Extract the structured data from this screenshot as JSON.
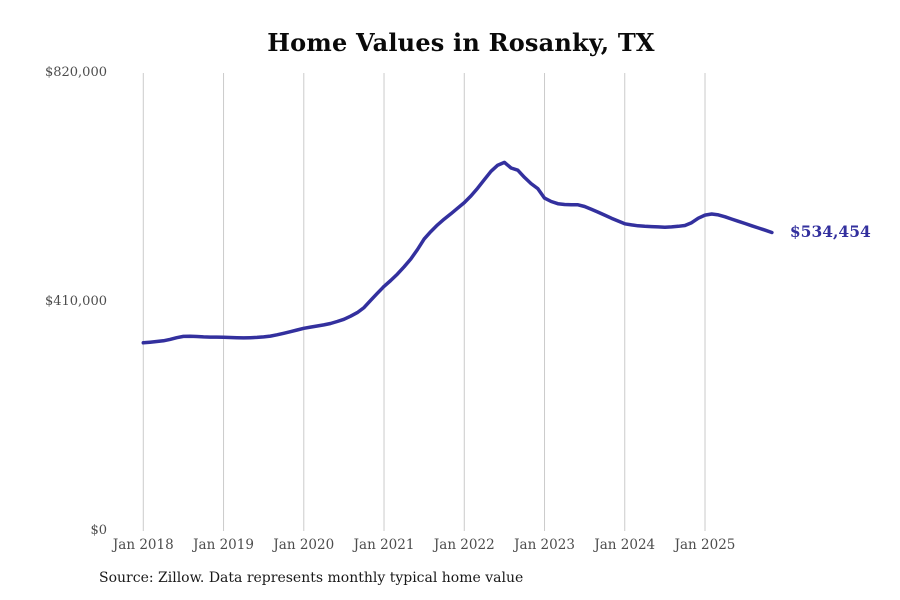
{
  "page": {
    "title": "Home Values in Rosanky, TX",
    "source_note": "Source: Zillow. Data represents monthly typical home value"
  },
  "chart_data": {
    "type": "line",
    "title": "Home Values in Rosanky, TX",
    "series_name": "Monthly typical home value",
    "end_label": "$534,454",
    "last_value": 534454,
    "ylim": [
      0,
      820000
    ],
    "grid": "vertical-only",
    "legend": "none",
    "x_tick_labels": [
      "Jan 2018",
      "Jan 2019",
      "Jan 2020",
      "Jan 2021",
      "Jan 2022",
      "Jan 2023",
      "Jan 2024",
      "Jan 2025"
    ],
    "y_ticks": [
      {
        "label": "$0",
        "value": 0
      },
      {
        "label": "$410,000",
        "value": 410000
      },
      {
        "label": "$820,000",
        "value": 820000
      }
    ],
    "colors": {
      "line": "#33309e",
      "end_label": "#33309e",
      "grid": "#cbcbcb",
      "axis_text": "#4d4d4d",
      "title": "#0a0a0a",
      "source_text": "#1a1a1a"
    },
    "x": [
      "2018-01",
      "2018-02",
      "2018-03",
      "2018-04",
      "2018-05",
      "2018-06",
      "2018-07",
      "2018-08",
      "2018-09",
      "2018-10",
      "2018-11",
      "2018-12",
      "2019-01",
      "2019-02",
      "2019-03",
      "2019-04",
      "2019-05",
      "2019-06",
      "2019-07",
      "2019-08",
      "2019-09",
      "2019-10",
      "2019-11",
      "2019-12",
      "2020-01",
      "2020-02",
      "2020-03",
      "2020-04",
      "2020-05",
      "2020-06",
      "2020-07",
      "2020-08",
      "2020-09",
      "2020-10",
      "2020-11",
      "2020-12",
      "2021-01",
      "2021-02",
      "2021-03",
      "2021-04",
      "2021-05",
      "2021-06",
      "2021-07",
      "2021-08",
      "2021-09",
      "2021-10",
      "2021-11",
      "2021-12",
      "2022-01",
      "2022-02",
      "2022-03",
      "2022-04",
      "2022-05",
      "2022-06",
      "2022-07",
      "2022-08",
      "2022-09",
      "2022-10",
      "2022-11",
      "2022-12",
      "2023-01",
      "2023-02",
      "2023-03",
      "2023-04",
      "2023-05",
      "2023-06",
      "2023-07",
      "2023-08",
      "2023-09",
      "2023-10",
      "2023-11",
      "2023-12",
      "2024-01",
      "2024-02",
      "2024-03",
      "2024-04",
      "2024-05",
      "2024-06",
      "2024-07",
      "2024-08",
      "2024-09",
      "2024-10",
      "2024-11",
      "2024-12",
      "2025-01",
      "2025-02",
      "2025-03",
      "2025-04",
      "2025-05",
      "2025-06",
      "2025-07",
      "2025-08",
      "2025-09",
      "2025-10",
      "2025-11"
    ],
    "values": [
      337000,
      338000,
      339200,
      340500,
      343000,
      346000,
      348500,
      348800,
      348200,
      347500,
      347200,
      347100,
      347000,
      346500,
      346000,
      345800,
      346000,
      346600,
      347500,
      349000,
      351200,
      354000,
      356800,
      359800,
      363000,
      365000,
      367000,
      369000,
      371500,
      375000,
      379000,
      384500,
      391000,
      400000,
      413000,
      425500,
      438000,
      448500,
      460000,
      473000,
      487000,
      504000,
      523000,
      536000,
      548000,
      558500,
      568000,
      578000,
      588000,
      600000,
      614000,
      629000,
      644000,
      655000,
      660000,
      650000,
      646000,
      633000,
      622000,
      613000,
      596000,
      590000,
      586000,
      584500,
      584000,
      584000,
      581000,
      576000,
      571000,
      565500,
      560000,
      555000,
      550000,
      548000,
      546500,
      545500,
      545000,
      544500,
      544000,
      544500,
      545500,
      547000,
      552000,
      560000,
      565500,
      567500,
      566000,
      562500,
      558500,
      554500,
      550500,
      546500,
      542500,
      538500,
      534454
    ]
  }
}
